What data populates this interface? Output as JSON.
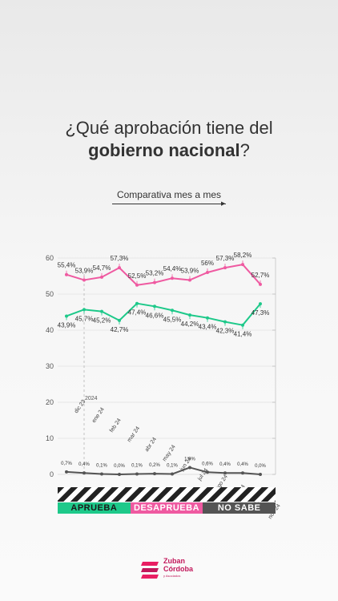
{
  "header": {
    "title_line1": "¿Qué aprobación tiene del",
    "title_bold": "gobierno nacional",
    "title_end": "?",
    "subtitle": "Comparativa mes a mes"
  },
  "legend": {
    "aprueba": "APRUEBA",
    "desaprueba": "DESAPRUEBA",
    "no_sabe": "NO SABE"
  },
  "logo": {
    "name_line1": "Zuban",
    "name_line2": "Córdoba",
    "tagline": "y Asociados"
  },
  "colors": {
    "aprueba": "#1ec98a",
    "desaprueba": "#ef5aa1",
    "no_sabe": "#545454"
  },
  "chart_data": {
    "type": "line",
    "categories": [
      "dic 23",
      "ene 24",
      "feb 24",
      "mar 24",
      "abr 24",
      "may 24",
      "jun 24",
      "jul 24",
      "ago 24",
      "sep 24",
      "oct 24",
      "nov 24"
    ],
    "year_marker": {
      "label": "2024"
    },
    "ylim": [
      0,
      60
    ],
    "yticks": [
      0,
      10,
      20,
      30,
      40,
      50,
      60
    ],
    "series": [
      {
        "name": "DESAPRUEBA",
        "key": "desaprueba",
        "values": [
          55.4,
          53.9,
          54.7,
          57.3,
          52.5,
          53.2,
          54.4,
          53.9,
          56,
          57.3,
          58.2,
          52.7
        ],
        "labels": [
          "55,4%",
          "53,9%",
          "54,7%",
          "57,3%",
          "52,5%",
          "53,2%",
          "54,4%",
          "53,9%",
          "56%",
          "57,3%",
          "58,2%",
          "52,7%"
        ]
      },
      {
        "name": "APRUEBA",
        "key": "aprueba",
        "values": [
          43.9,
          45.7,
          45.2,
          42.7,
          47.4,
          46.6,
          45.5,
          44.2,
          43.4,
          42.3,
          41.4,
          47.3
        ],
        "labels": [
          "43,9%",
          "45,7%",
          "45,2%",
          "42,7%",
          "47,4%",
          "46,6%",
          "45,5%",
          "44,2%",
          "43,4%",
          "42,3%",
          "41,4%",
          "47,3%"
        ]
      },
      {
        "name": "NO SABE",
        "key": "no_sabe",
        "values": [
          0.7,
          0.4,
          0.1,
          0.0,
          0.1,
          0.2,
          0.1,
          1.9,
          0.6,
          0.4,
          0.4,
          0.0
        ],
        "labels": [
          "0,7%",
          "0,4%",
          "0,1%",
          "0,0%",
          "0,1%",
          "0,2%",
          "0,1%",
          "1,9%",
          "0,6%",
          "0,4%",
          "0,4%",
          "0,0%"
        ]
      }
    ]
  }
}
